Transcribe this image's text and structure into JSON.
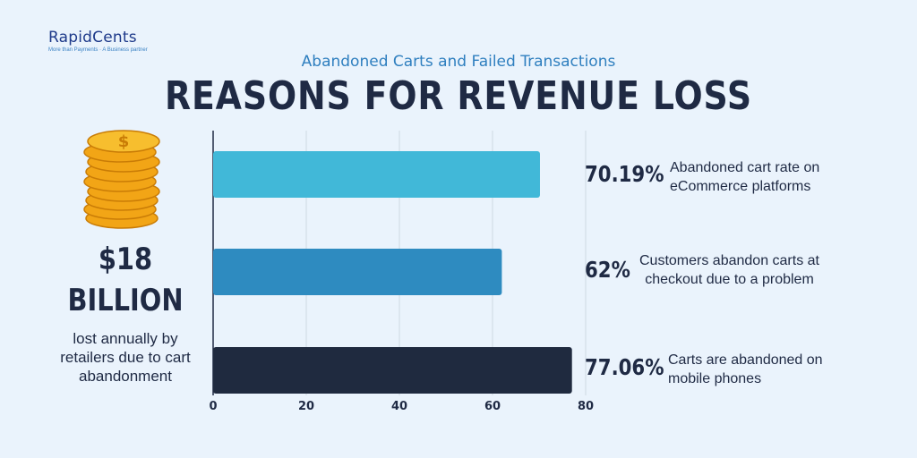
{
  "logo": {
    "name": "RapidCents",
    "tagline": "More than Payments · A Business partner"
  },
  "header": {
    "subtitle": "Abandoned Carts and Failed Transactions",
    "title": "REASONS FOR REVENUE LOSS"
  },
  "stat": {
    "amount": "$18",
    "unit": "BILLION",
    "description": "lost annually by retailers due to cart abandonment"
  },
  "colors": {
    "bar1": "#41b8d8",
    "bar2": "#2e8bc0",
    "bar3": "#1f2a3f",
    "text": "#1f2a44",
    "accent": "#2f7fbf"
  },
  "chart_data": {
    "type": "bar",
    "orientation": "horizontal",
    "categories": [
      "Abandoned cart rate on eCommerce platforms",
      "Customers abandon carts at checkout due to a problem",
      "Carts are abandoned on mobile phones"
    ],
    "values": [
      70.19,
      62,
      77.06
    ],
    "value_labels": [
      "70.19%",
      "62%",
      "77.06%"
    ],
    "label_lines": [
      [
        "Abandoned cart rate on",
        "eCommerce platforms"
      ],
      [
        "Customers abandon carts at",
        "checkout due to a problem"
      ],
      [
        "Carts are abandoned on",
        "mobile phones"
      ]
    ],
    "xlim": [
      0,
      80
    ],
    "xticks": [
      0,
      20,
      40,
      60,
      80
    ],
    "xlabel": "",
    "ylabel": "",
    "grid": true
  }
}
